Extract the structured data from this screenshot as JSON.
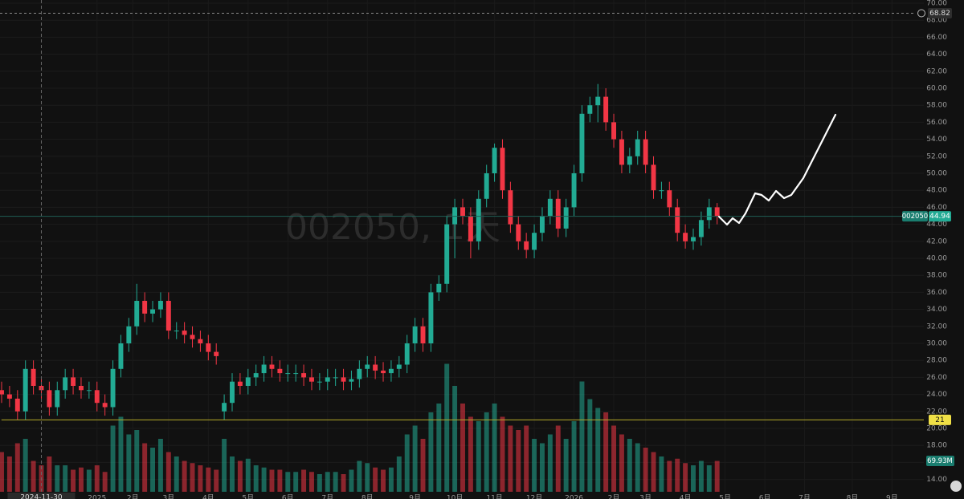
{
  "chart_data": {
    "type": "candlestick",
    "watermark": "002050, 1天",
    "symbol": "002050",
    "up_color": "#22ab94",
    "down_color": "#f23645",
    "grid": true,
    "open": [
      24.5,
      24,
      23.5,
      22,
      27,
      25,
      24.5,
      22.5,
      24.5,
      26,
      25,
      24.5,
      24.5,
      23,
      22.5,
      27,
      30,
      32,
      35,
      33.5,
      34,
      35,
      31.5,
      31.5,
      31,
      30.5,
      30,
      29,
      22,
      23,
      25.5,
      25,
      26,
      26.5,
      27.5,
      27,
      26.5,
      26.5,
      26.5,
      26,
      25.5,
      25.5,
      26,
      26,
      25.5,
      25.8,
      27,
      27.5,
      26.8,
      26.5,
      27,
      27.5,
      30,
      32,
      30,
      36,
      37,
      44,
      46,
      45,
      42,
      47,
      50,
      53,
      48,
      44,
      42,
      41,
      43,
      45,
      47,
      43.5,
      46,
      50,
      57,
      58,
      59,
      56,
      54,
      51,
      52,
      54,
      51,
      48,
      48,
      46,
      43,
      42,
      42.5,
      44.5,
      46
    ],
    "high": [
      25.5,
      25,
      24.5,
      28,
      28,
      26,
      25.5,
      25.5,
      27,
      27,
      26,
      25.5,
      25.5,
      24,
      28,
      31,
      33,
      37,
      36,
      35,
      36,
      36,
      32.5,
      32.5,
      32,
      31.5,
      31,
      30,
      24,
      26.5,
      26.5,
      27,
      27.5,
      28.5,
      28.5,
      28,
      27.5,
      27.5,
      27.5,
      27,
      26.5,
      27,
      27,
      27,
      26.8,
      28,
      28.5,
      28.5,
      27.8,
      28,
      28.5,
      31,
      33,
      33,
      37,
      38,
      45,
      47,
      47,
      46,
      48,
      51,
      53.5,
      54,
      49,
      45,
      43,
      44,
      46,
      48,
      48,
      47,
      51,
      58,
      59,
      60.5,
      60,
      57,
      55,
      53,
      55,
      55,
      52,
      49,
      49,
      47,
      44,
      43.5,
      45.5,
      47,
      46.5
    ],
    "low": [
      23,
      22.5,
      21,
      21,
      24,
      23.5,
      21.5,
      21.5,
      23.5,
      24,
      23.5,
      23.5,
      22,
      21.5,
      21.5,
      26,
      29,
      31,
      32.5,
      32.5,
      33,
      30.5,
      30.5,
      30,
      29.5,
      29,
      28,
      27.5,
      21,
      22,
      24,
      24,
      25,
      25.5,
      26,
      25.5,
      25.5,
      25.5,
      25,
      24.5,
      24.5,
      24.5,
      25,
      24.5,
      24.5,
      24.8,
      26,
      25.8,
      25.5,
      25.5,
      26,
      26.5,
      29,
      29,
      29,
      35,
      36,
      40,
      44,
      40,
      41,
      46,
      49,
      47,
      43,
      41,
      40,
      40,
      42,
      44,
      42.5,
      42.5,
      45,
      49,
      56,
      56,
      55,
      53,
      50,
      50,
      51,
      50,
      47,
      47,
      45,
      42,
      41.14,
      41,
      41.5,
      43.5,
      44
    ],
    "close": [
      24,
      23.5,
      22,
      27,
      25,
      24.5,
      22.5,
      24.5,
      26,
      25,
      24.5,
      24.5,
      23,
      22.5,
      27,
      30,
      32,
      35,
      33.5,
      34,
      35,
      31.5,
      31.5,
      31,
      30.5,
      30,
      29,
      28.5,
      23,
      25.5,
      25,
      26,
      26.5,
      27.5,
      27,
      26.5,
      26.5,
      26.5,
      26,
      25.5,
      25.5,
      26,
      26,
      25.5,
      25.8,
      27,
      27.5,
      26.8,
      26.5,
      27,
      27.5,
      30,
      32,
      30,
      36,
      37,
      44,
      46,
      45,
      42,
      47,
      50,
      53,
      48,
      44,
      42,
      41,
      43,
      45,
      47,
      43.5,
      46,
      50,
      57,
      58,
      59,
      56,
      54,
      51,
      52,
      54,
      51,
      48,
      48,
      46,
      43,
      42,
      42.5,
      44.5,
      46,
      44.94
    ],
    "volume": [
      90,
      80,
      110,
      120,
      70,
      60,
      80,
      60,
      60,
      50,
      55,
      50,
      60,
      45,
      150,
      170,
      130,
      140,
      110,
      100,
      120,
      90,
      80,
      70,
      65,
      60,
      55,
      50,
      120,
      80,
      70,
      75,
      60,
      55,
      50,
      50,
      45,
      45,
      50,
      45,
      40,
      45,
      45,
      40,
      50,
      70,
      65,
      55,
      50,
      55,
      80,
      130,
      150,
      120,
      180,
      200,
      290,
      240,
      200,
      170,
      160,
      180,
      200,
      170,
      150,
      140,
      150,
      120,
      110,
      130,
      150,
      120,
      160,
      250,
      210,
      190,
      180,
      150,
      130,
      120,
      110,
      100,
      90,
      80,
      70,
      75,
      65,
      60,
      70,
      60,
      69.93
    ],
    "volume_last_label": "69.93M",
    "vlim": [
      0,
      300
    ],
    "alert_level": 68.82,
    "crosshair_label": "2024-11-30",
    "crosshair_x": 5,
    "xlim": [
      0,
      116
    ],
    "xticks": [
      {
        "value": 12,
        "label": "2025"
      },
      {
        "value": 16.5,
        "label": "2月"
      },
      {
        "value": 21,
        "label": "3月"
      },
      {
        "value": 26,
        "label": "4月"
      },
      {
        "value": 31,
        "label": "5月"
      },
      {
        "value": 36,
        "label": "6月"
      },
      {
        "value": 41,
        "label": "7月"
      },
      {
        "value": 46,
        "label": "8月"
      },
      {
        "value": 52,
        "label": "9月"
      },
      {
        "value": 57,
        "label": "10月"
      },
      {
        "value": 62,
        "label": "11月"
      },
      {
        "value": 67,
        "label": "12月"
      },
      {
        "value": 72,
        "label": "2026"
      },
      {
        "value": 77,
        "label": "2月"
      },
      {
        "value": 81,
        "label": "3月"
      },
      {
        "value": 86,
        "label": "4月"
      },
      {
        "value": 91,
        "label": "5月"
      },
      {
        "value": 96,
        "label": "6月"
      },
      {
        "value": 101,
        "label": "7月"
      },
      {
        "value": 107,
        "label": "8月"
      },
      {
        "value": 112,
        "label": "9月"
      }
    ],
    "ylim": [
      14,
      70
    ],
    "yticks": [
      {
        "value": 70,
        "label": "70.00"
      },
      {
        "value": 68,
        "label": "68.00"
      },
      {
        "value": 66,
        "label": "66.00"
      },
      {
        "value": 64,
        "label": "64.00"
      },
      {
        "value": 62,
        "label": "62.00"
      },
      {
        "value": 60,
        "label": "60.00"
      },
      {
        "value": 58,
        "label": "58.00"
      },
      {
        "value": 56,
        "label": "56.00"
      },
      {
        "value": 54,
        "label": "54.00"
      },
      {
        "value": 52,
        "label": "52.00"
      },
      {
        "value": 50,
        "label": "50.00"
      },
      {
        "value": 48,
        "label": "48.00"
      },
      {
        "value": 46,
        "label": "46.00"
      },
      {
        "value": 44,
        "label": "44.00"
      },
      {
        "value": 42,
        "label": "42.00"
      },
      {
        "value": 40,
        "label": "40.00"
      },
      {
        "value": 38,
        "label": "38.00"
      },
      {
        "value": 36,
        "label": "36.00"
      },
      {
        "value": 34,
        "label": "34.00"
      },
      {
        "value": 32,
        "label": "32.00"
      },
      {
        "value": 30,
        "label": "30.00"
      },
      {
        "value": 28,
        "label": "28.00"
      },
      {
        "value": 26,
        "label": "26.00"
      },
      {
        "value": 24,
        "label": "24.00"
      },
      {
        "value": 22,
        "label": "22.00"
      },
      {
        "value": 20,
        "label": "20.00"
      },
      {
        "value": 18,
        "label": "18.00"
      },
      {
        "value": 16,
        "label": "16.00"
      },
      {
        "value": 14,
        "label": "14.00"
      }
    ]
  }
}
